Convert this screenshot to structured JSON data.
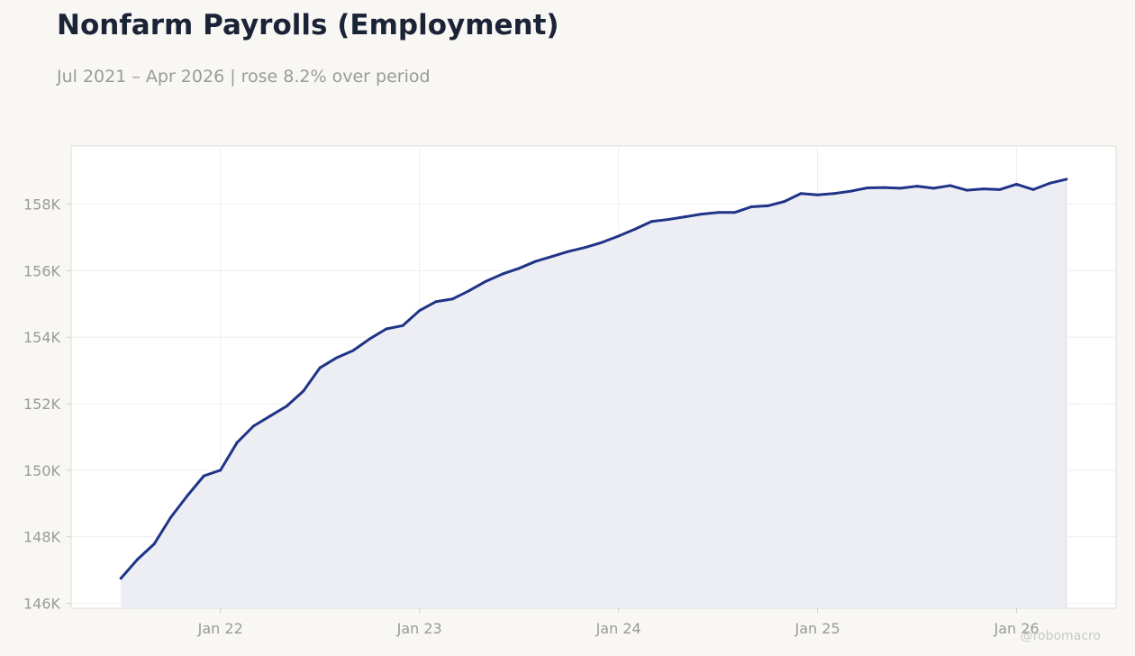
{
  "header": {
    "title": "Nonfarm Payrolls (Employment)",
    "subtitle": "Jul 2021 – Apr 2026 | rose 8.2% over period"
  },
  "watermark": "@robomacro",
  "colors": {
    "background": "#f8f7f4",
    "plot_background": "#ffffff",
    "line": "#1f3486",
    "area_fill": "#ecedf3",
    "tick_text": "#9a9a9a",
    "grid": "#eeeeee"
  },
  "chart_data": {
    "type": "area",
    "title": "Nonfarm Payrolls (Employment)",
    "subtitle": "Jul 2021 – Apr 2026 | rose 8.2% over period",
    "xlabel": "",
    "ylabel": "",
    "grid": true,
    "legend": "none",
    "x_start": "2021-07",
    "x_ticks": [
      {
        "date": "2022-01",
        "label": "Jan 22"
      },
      {
        "date": "2023-01",
        "label": "Jan 23"
      },
      {
        "date": "2024-01",
        "label": "Jan 24"
      },
      {
        "date": "2025-01",
        "label": "Jan 25"
      },
      {
        "date": "2026-01",
        "label": "Jan 26"
      }
    ],
    "y_ticks": [
      {
        "value": 146000,
        "label": "146K"
      },
      {
        "value": 148000,
        "label": "148K"
      },
      {
        "value": 150000,
        "label": "150K"
      },
      {
        "value": 152000,
        "label": "152K"
      },
      {
        "value": 154000,
        "label": "154K"
      },
      {
        "value": 156000,
        "label": "156K"
      },
      {
        "value": 158000,
        "label": "158K"
      }
    ],
    "xlim": [
      "2021-04",
      "2026-07"
    ],
    "ylim": [
      145850,
      159750
    ],
    "series": [
      {
        "values": [
          146750,
          147320,
          147780,
          148580,
          149230,
          149830,
          150000,
          150830,
          151330,
          151630,
          151930,
          152380,
          153080,
          153380,
          153600,
          153950,
          154250,
          154350,
          154800,
          155070,
          155150,
          155400,
          155680,
          155900,
          156070,
          156280,
          156430,
          156580,
          156700,
          156850,
          157040,
          157250,
          157480,
          157540,
          157620,
          157700,
          157750,
          157750,
          157920,
          157950,
          158080,
          158320,
          158280,
          158320,
          158390,
          158490,
          158500,
          158480,
          158540,
          158480,
          158560,
          158420,
          158460,
          158440,
          158600,
          158440,
          158630,
          158750
        ]
      }
    ]
  }
}
